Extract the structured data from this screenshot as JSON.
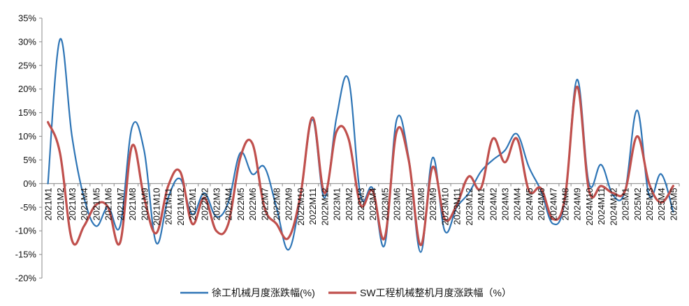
{
  "chart_data": {
    "type": "line",
    "title": "",
    "xlabel": "",
    "ylabel": "",
    "ylim": [
      -20,
      35
    ],
    "yticks": [
      -20,
      -15,
      -10,
      -5,
      0,
      5,
      10,
      15,
      20,
      25,
      30,
      35
    ],
    "ytick_suffix": "%",
    "grid": false,
    "legend_position": "bottom-center",
    "categories": [
      "2021M1",
      "2021M2",
      "2021M3",
      "2021M4",
      "2021M5",
      "2021M6",
      "2021M7",
      "2021M8",
      "2021M9",
      "2021M10",
      "2021M11",
      "2021M12",
      "2022M1",
      "2022M2",
      "2022M3",
      "2022M4",
      "2022M5",
      "2022M6",
      "2022M7",
      "2022M8",
      "2022M9",
      "2022M10",
      "2022M11",
      "2022M12",
      "2023M1",
      "2023M2",
      "2023M3",
      "2023M4",
      "2023M5",
      "2023M6",
      "2023M7",
      "2023M8",
      "2023M9",
      "2023M10",
      "2023M11",
      "2023M12",
      "2024M1",
      "2024M2",
      "2024M3",
      "2024M4",
      "2024M5",
      "2024M6",
      "2024M7",
      "2024M8",
      "2024M9",
      "2024M10",
      "2024M11",
      "2024M12",
      "2025M1",
      "2025M2",
      "2025M3",
      "2025M4",
      "2025M5"
    ],
    "series": [
      {
        "name": "徐工机械月度涨跌幅(%)",
        "color": "#2E75B6",
        "values": [
          0.0,
          30.5,
          10.0,
          -3.0,
          -9.0,
          -5.0,
          -9.0,
          12.0,
          7.0,
          -12.5,
          -3.0,
          1.0,
          -6.5,
          -2.0,
          -7.0,
          -4.0,
          6.5,
          2.0,
          3.5,
          -5.0,
          -14.0,
          -3.0,
          13.5,
          -3.0,
          14.0,
          22.0,
          -2.5,
          -1.0,
          -13.0,
          13.5,
          5.5,
          -14.5,
          5.5,
          -10.0,
          -5.0,
          -2.0,
          2.5,
          5.0,
          7.0,
          10.5,
          3.5,
          -1.5,
          -8.5,
          -3.5,
          22.0,
          0.0,
          4.0,
          -2.5,
          -1.5,
          15.5,
          -2.5,
          2.0,
          -6.0
        ]
      },
      {
        "name": "SW工程机械整机月度涨跌幅（%）",
        "color": "#C0504D",
        "values": [
          13.0,
          6.5,
          -12.0,
          -9.0,
          -4.5,
          -5.0,
          -12.5,
          8.0,
          -3.0,
          -10.5,
          -0.5,
          2.5,
          -8.5,
          -3.0,
          -10.0,
          -8.5,
          5.5,
          8.5,
          -5.0,
          -8.5,
          -11.5,
          -2.5,
          14.0,
          -2.0,
          11.0,
          9.5,
          -4.5,
          -1.5,
          -11.5,
          11.0,
          5.0,
          -13.0,
          3.5,
          -7.5,
          -4.5,
          1.5,
          -1.0,
          9.5,
          4.5,
          9.5,
          -1.5,
          -1.0,
          -7.5,
          -3.0,
          20.5,
          -1.5,
          -0.5,
          -2.0,
          -1.5,
          10.0,
          0.0,
          -4.0,
          -0.5
        ]
      }
    ]
  }
}
